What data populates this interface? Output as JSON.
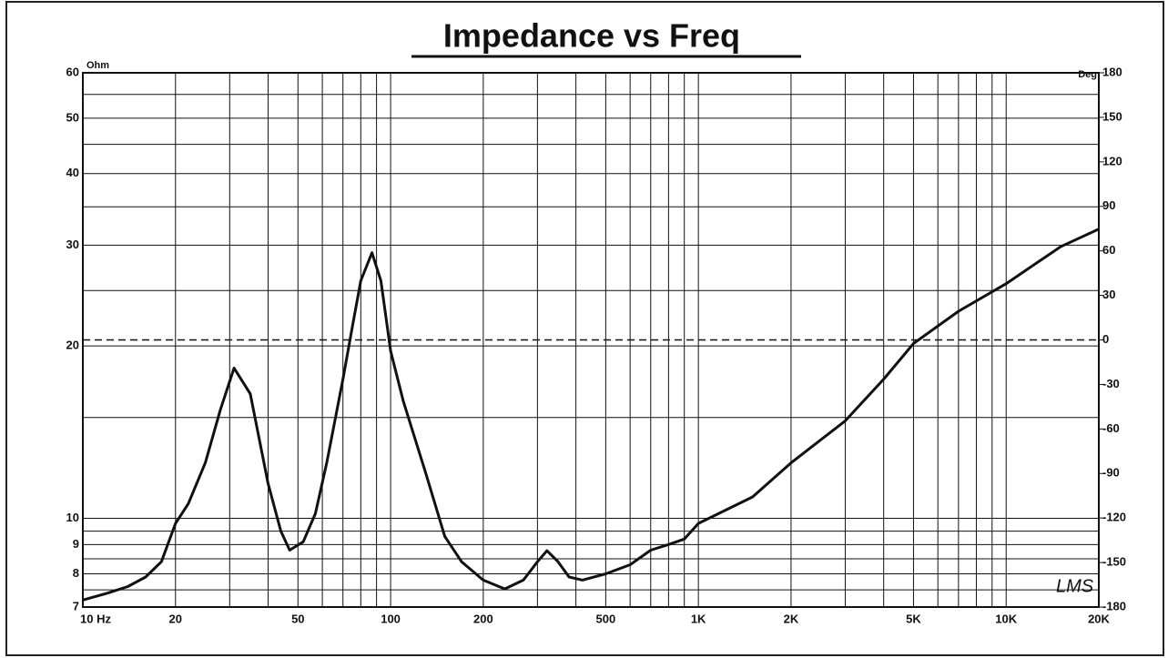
{
  "chart_data": {
    "type": "line",
    "title": "Impedance vs Freq",
    "y_unit": "Ohm",
    "y2_unit": "Deg",
    "logo": "LMS",
    "xscale": "log",
    "yscale": "log",
    "grid": true,
    "xlim": [
      10,
      20000
    ],
    "ylim": [
      7,
      60
    ],
    "y2lim": [
      -180,
      180
    ],
    "xticks": [
      {
        "value": 10,
        "label": "10  Hz"
      },
      20,
      50,
      100,
      200,
      500,
      {
        "value": 1000,
        "label": "1K"
      },
      {
        "value": 2000,
        "label": "2K"
      },
      {
        "value": 5000,
        "label": "5K"
      },
      {
        "value": 10000,
        "label": "10K"
      },
      {
        "value": 20000,
        "label": "20K"
      }
    ],
    "xgrid_minor": [
      30,
      40,
      60,
      70,
      80,
      90,
      300,
      400,
      600,
      700,
      800,
      900,
      3000,
      4000,
      6000,
      7000,
      8000,
      9000
    ],
    "yticks": [
      7,
      8,
      9,
      10,
      20,
      30,
      40,
      50,
      60
    ],
    "ygrid_minor": [
      7.5,
      8.5,
      9.5,
      15,
      25,
      35,
      45,
      55
    ],
    "y2ticks": [
      -180,
      -150,
      -120,
      -90,
      -60,
      -30,
      0,
      30,
      60,
      90,
      120,
      150,
      180
    ],
    "reference_line": {
      "axis": "y2",
      "value": 0,
      "style": "dashed"
    },
    "series": [
      {
        "name": "Impedance",
        "color": "#111111",
        "x": [
          10,
          12,
          14,
          16,
          18,
          20,
          22,
          25,
          28,
          31,
          35,
          40,
          44,
          47,
          52,
          57,
          62,
          70,
          75,
          80,
          87,
          93,
          100,
          110,
          130,
          150,
          170,
          200,
          235,
          270,
          300,
          322,
          350,
          380,
          420,
          500,
          600,
          700,
          800,
          900,
          1000,
          1500,
          2000,
          3000,
          4000,
          5000,
          7000,
          10000,
          15000,
          20000
        ],
        "values": [
          7.2,
          7.4,
          7.6,
          7.9,
          8.4,
          9.8,
          10.6,
          12.5,
          15.5,
          18.3,
          16.5,
          11.5,
          9.5,
          8.8,
          9.1,
          10.2,
          12.5,
          17.5,
          21.5,
          26,
          29.1,
          26,
          19.6,
          16,
          12,
          9.3,
          8.4,
          7.8,
          7.53,
          7.8,
          8.4,
          8.78,
          8.4,
          7.9,
          7.8,
          8.0,
          8.3,
          8.8,
          9.0,
          9.2,
          9.8,
          10.9,
          12.5,
          14.8,
          17.5,
          20.2,
          23,
          25.7,
          29.8,
          32
        ]
      }
    ]
  }
}
